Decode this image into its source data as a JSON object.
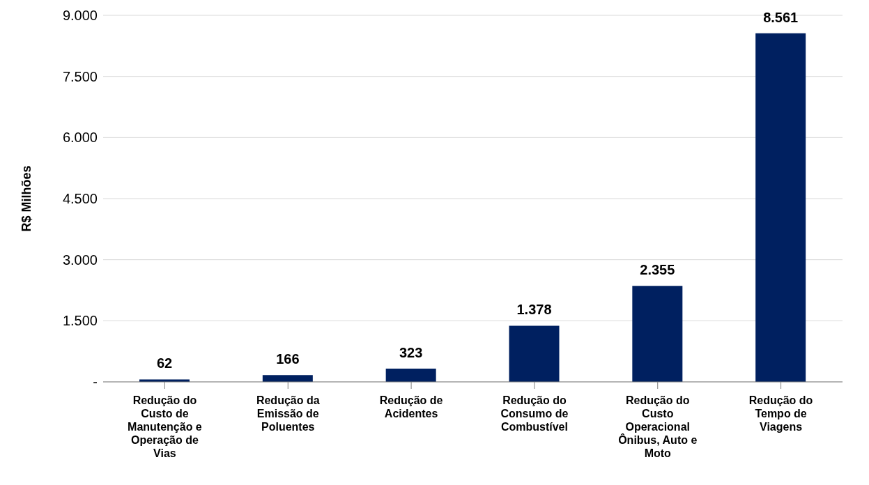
{
  "chart_data": {
    "type": "bar",
    "ylabel": "R$ Milhões",
    "categories": [
      "Redução do Custo de Manutenção e Operação de Vias",
      "Redução da Emissão de Poluentes",
      "Redução de Acidentes",
      "Redução do Consumo de Combustível",
      "Redução do Custo Operacional Ônibus, Auto e Moto",
      "Redução do Tempo de Viagens"
    ],
    "values": [
      62,
      166,
      323,
      1378,
      2355,
      8561
    ],
    "value_labels": [
      "62",
      "166",
      "323",
      "1.378",
      "2.355",
      "8.561"
    ],
    "color": "#002060",
    "ylim": [
      0,
      9000
    ],
    "yticks": [
      {
        "value": 0,
        "label": "-"
      },
      {
        "value": 1500,
        "label": "1.500"
      },
      {
        "value": 3000,
        "label": "3.000"
      },
      {
        "value": 4500,
        "label": "4.500"
      },
      {
        "value": 6000,
        "label": "6.000"
      },
      {
        "value": 7500,
        "label": "7.500"
      },
      {
        "value": 9000,
        "label": "9.000"
      }
    ],
    "grid": "y"
  }
}
